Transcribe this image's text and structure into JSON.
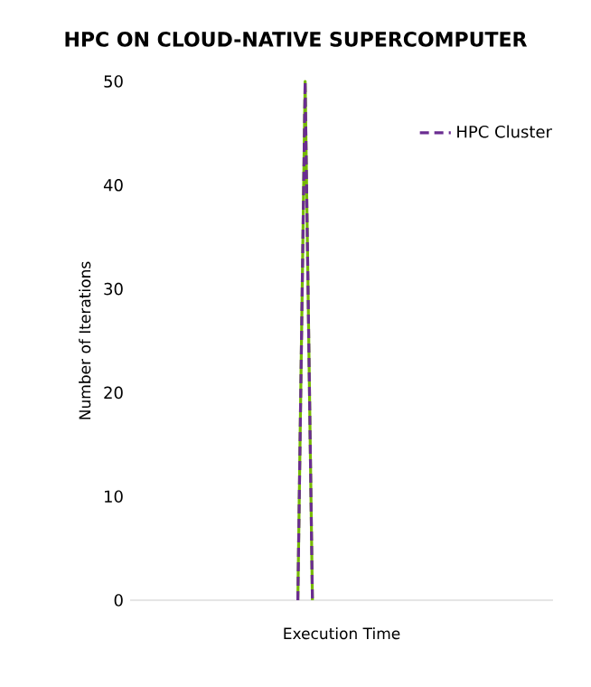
{
  "chart_data": {
    "type": "line",
    "title": "HPC ON CLOUD-NATIVE SUPERCOMPUTER",
    "xlabel": "Execution Time",
    "ylabel": "Number of Iterations",
    "categories": [
      null,
      null,
      null,
      null,
      null,
      null,
      null,
      null,
      null,
      null,
      null,
      null,
      null,
      null,
      null,
      null,
      null,
      null,
      null,
      null,
      null,
      null,
      null,
      null,
      null,
      null,
      null,
      null,
      null,
      null,
      null,
      null,
      null,
      null,
      null,
      null,
      null,
      null,
      null,
      null,
      null,
      null,
      null,
      null,
      null,
      null,
      null,
      null,
      null,
      null,
      null,
      null,
      null,
      null,
      null,
      null,
      null,
      null,
      null
    ],
    "series": [
      {
        "color": "#76b900",
        "values": [
          null,
          null,
          null,
          null,
          null,
          null,
          null,
          null,
          null,
          null,
          null,
          null,
          null,
          null,
          null,
          null,
          null,
          null,
          null,
          null,
          null,
          null,
          null,
          0,
          50,
          0,
          null,
          null,
          null,
          null,
          null,
          null,
          null,
          null,
          null,
          null,
          null,
          null,
          null,
          null,
          null,
          null,
          null,
          null,
          null,
          null,
          null,
          null,
          null,
          null,
          null,
          null,
          null,
          null,
          null,
          null,
          null,
          null,
          null
        ],
        "line_style": "solid"
      },
      {
        "name": "HPC Cluster",
        "color": "#6a2c91",
        "values": [
          null,
          null,
          null,
          null,
          null,
          null,
          null,
          null,
          null,
          null,
          null,
          null,
          null,
          null,
          null,
          null,
          null,
          null,
          null,
          null,
          null,
          null,
          null,
          0,
          50,
          0,
          null,
          null,
          null,
          null,
          null,
          null,
          null,
          null,
          null,
          null,
          null,
          null,
          null,
          null,
          null,
          null,
          null,
          null,
          null,
          null,
          null,
          null,
          null,
          null,
          null,
          null,
          null,
          null,
          null,
          null,
          null,
          null,
          null
        ],
        "line_style": "dashed"
      }
    ],
    "ylim": [
      0,
      50
    ],
    "yticks": [
      0,
      10,
      20,
      30,
      40,
      50
    ],
    "grid": false,
    "legend": "top right",
    "marker": "none"
  }
}
